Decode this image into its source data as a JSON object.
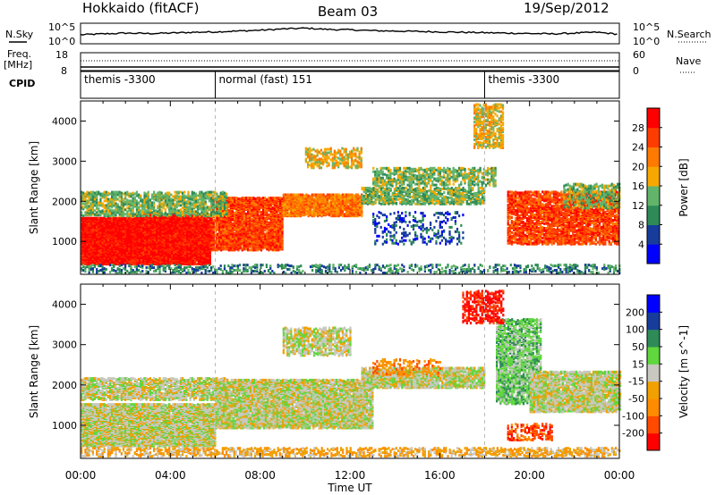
{
  "header": {
    "title_left": "Hokkaido (fitACF)",
    "title_center": "Beam 03",
    "title_right": "19/Sep/2012"
  },
  "left_labels": {
    "nsky": "N.Sky",
    "freq_1": "Freq.",
    "freq_2": "[MHz]",
    "cpid": "CPID"
  },
  "right_labels": {
    "nsearch": "N.Search",
    "nave": "Nave"
  },
  "nsky_ticks": {
    "top": "10^5",
    "bottom": "10^0"
  },
  "freq_ticks": {
    "top": "18",
    "bottom": "8"
  },
  "nave_ticks": {
    "top": "60",
    "bottom": "0"
  },
  "nsearch_ticks": {
    "top": "10^5",
    "bottom": "10^0"
  },
  "cpid_segments": [
    {
      "label": "themis -3300",
      "start_hour": 0,
      "end_hour": 6
    },
    {
      "label": "normal (fast) 151",
      "start_hour": 6,
      "end_hour": 18
    },
    {
      "label": "themis -3300",
      "start_hour": 18,
      "end_hour": 24
    }
  ],
  "colors": {
    "power": [
      "#0000ff",
      "#173c9c",
      "#2e8b57",
      "#62b46a",
      "#f7a800",
      "#ff7a00",
      "#ff3c00",
      "#ff0000"
    ],
    "velocity": [
      "#ff0000",
      "#ff4a00",
      "#ff8c00",
      "#f0a000",
      "#c8c8c0",
      "#5fd73d",
      "#2e8b57",
      "#173c9c",
      "#0000ff"
    ]
  },
  "chart_data": [
    {
      "type": "line",
      "title": "Hokkaido (fitACF)",
      "panel": "noise",
      "series": [
        {
          "name": "N.Sky",
          "x_hours": [
            0,
            1,
            2,
            3,
            4,
            5,
            6,
            7,
            8,
            9,
            10,
            11,
            12,
            13,
            14,
            15,
            16,
            17,
            18,
            19,
            20,
            21,
            22,
            23,
            24
          ],
          "values": [
            2.2,
            2.4,
            2.6,
            2.5,
            2.6,
            2.8,
            2.9,
            3.1,
            3.3,
            3.6,
            3.8,
            3.5,
            3.4,
            3.2,
            3.1,
            3.0,
            2.9,
            2.8,
            2.7,
            2.6,
            2.5,
            2.4,
            2.6,
            2.8,
            2.3
          ]
        }
      ],
      "ylim": [
        0,
        5
      ],
      "ylabel": "N.Sky"
    },
    {
      "type": "heatmap",
      "panel": "power",
      "xlabel": "Time UT",
      "ylabel": "Slant Range [km]",
      "xlim_hours": [
        0,
        24
      ],
      "ylim": [
        180,
        4500
      ],
      "x_ticks": [
        "00:00",
        "04:00",
        "08:00",
        "12:00",
        "16:00",
        "20:00",
        "00:00"
      ],
      "y_ticks": [
        1000,
        2000,
        3000,
        4000
      ],
      "colorbar_label": "Power [dB]",
      "colorbar_ticks": [
        "4",
        "8",
        "12",
        "16",
        "20",
        "24",
        "28"
      ],
      "colorbar_range": [
        0,
        32
      ],
      "regions": [
        {
          "t0": 0.0,
          "t1": 2.5,
          "r0": 400,
          "r1": 1550,
          "level": 7,
          "density": 0.95
        },
        {
          "t0": 2.5,
          "t1": 5.8,
          "r0": 400,
          "r1": 1650,
          "level": 7,
          "density": 0.9
        },
        {
          "t0": 5.8,
          "t1": 9.0,
          "r0": 750,
          "r1": 2050,
          "level": 6,
          "density": 0.75
        },
        {
          "t0": 9.0,
          "t1": 12.5,
          "r0": 1600,
          "r1": 2150,
          "level": 5,
          "density": 0.8
        },
        {
          "t0": 0.0,
          "t1": 6.5,
          "r0": 1600,
          "r1": 2200,
          "level": 3,
          "density": 0.45
        },
        {
          "t0": 12.5,
          "t1": 18.0,
          "r0": 1900,
          "r1": 2300,
          "level": 3,
          "density": 0.55
        },
        {
          "t0": 13.0,
          "t1": 18.5,
          "r0": 2350,
          "r1": 2800,
          "level": 3,
          "density": 0.4
        },
        {
          "t0": 10.0,
          "t1": 12.5,
          "r0": 2800,
          "r1": 3300,
          "level": 4,
          "density": 0.35
        },
        {
          "t0": 17.5,
          "t1": 18.8,
          "r0": 3300,
          "r1": 4400,
          "level": 4,
          "density": 0.45
        },
        {
          "t0": 19.0,
          "t1": 24.0,
          "r0": 900,
          "r1": 2200,
          "level": 6,
          "density": 0.6
        },
        {
          "t0": 21.5,
          "t1": 24.0,
          "r0": 1800,
          "r1": 2400,
          "level": 3,
          "density": 0.4
        },
        {
          "t0": 13.0,
          "t1": 17.0,
          "r0": 900,
          "r1": 1700,
          "level": 1,
          "density": 0.15
        },
        {
          "t0": 0.0,
          "t1": 24.0,
          "r0": 180,
          "r1": 380,
          "level": 2,
          "density": 0.25
        }
      ]
    },
    {
      "type": "heatmap",
      "panel": "velocity",
      "xlabel": "Time UT",
      "ylabel": "Slant Range [km]",
      "xlim_hours": [
        0,
        24
      ],
      "ylim": [
        180,
        4500
      ],
      "x_ticks": [
        "00:00",
        "04:00",
        "08:00",
        "12:00",
        "16:00",
        "20:00",
        "00:00"
      ],
      "y_ticks": [
        1000,
        2000,
        3000,
        4000
      ],
      "colorbar_label": "Velocity [m s^-1]",
      "colorbar_ticks": [
        "-200",
        "-100",
        "-50",
        "-15",
        "15",
        "50",
        "100",
        "200"
      ],
      "colorbar_range": [
        -250,
        250
      ],
      "regions": [
        {
          "t0": 0.0,
          "t1": 6.0,
          "r0": 450,
          "r1": 1500,
          "level": 4,
          "density": 0.85
        },
        {
          "t0": 0.0,
          "t1": 6.5,
          "r0": 1600,
          "r1": 2150,
          "level": 4,
          "density": 0.6
        },
        {
          "t0": 6.0,
          "t1": 13.0,
          "r0": 900,
          "r1": 2100,
          "level": 4,
          "density": 0.75
        },
        {
          "t0": 12.5,
          "t1": 18.0,
          "r0": 1900,
          "r1": 2400,
          "level": 4,
          "density": 0.7
        },
        {
          "t0": 9.0,
          "t1": 12.0,
          "r0": 2700,
          "r1": 3400,
          "level": 4,
          "density": 0.45
        },
        {
          "t0": 18.5,
          "t1": 20.5,
          "r0": 1500,
          "r1": 3600,
          "level": 5,
          "density": 0.55
        },
        {
          "t0": 17.0,
          "t1": 18.8,
          "r0": 3500,
          "r1": 4300,
          "level": 0,
          "density": 0.35
        },
        {
          "t0": 20.0,
          "t1": 24.0,
          "r0": 1300,
          "r1": 2300,
          "level": 4,
          "density": 0.7
        },
        {
          "t0": 0.0,
          "t1": 24.0,
          "r0": 200,
          "r1": 420,
          "level": 3,
          "density": 0.35
        },
        {
          "t0": 19.0,
          "t1": 21.0,
          "r0": 600,
          "r1": 1000,
          "level": 1,
          "density": 0.3
        },
        {
          "t0": 13.0,
          "t1": 16.0,
          "r0": 2200,
          "r1": 2600,
          "level": 2,
          "density": 0.25
        }
      ]
    }
  ]
}
